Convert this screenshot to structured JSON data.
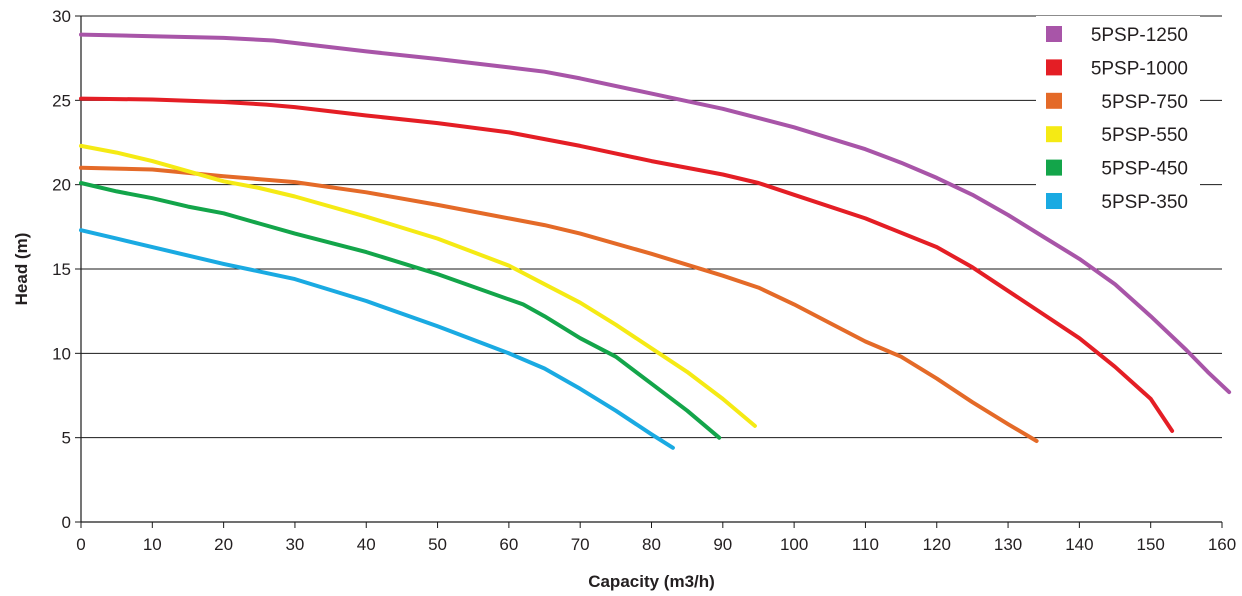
{
  "chart_data": {
    "type": "line",
    "title": "",
    "xlabel": "Capacity (m3/h)",
    "ylabel": "Head (m)",
    "xlim": [
      0,
      160
    ],
    "ylim": [
      0,
      30
    ],
    "x_ticks": [
      "0",
      "10",
      "20",
      "30",
      "40",
      "50",
      "60",
      "70",
      "80",
      "90",
      "100",
      "110",
      "120",
      "130",
      "140",
      "150",
      "160"
    ],
    "y_ticks": [
      "0",
      "5",
      "10",
      "15",
      "20",
      "25",
      "30"
    ],
    "grid": "horizontal",
    "legend_position": "top-right",
    "series": [
      {
        "name": "5PSP-1250",
        "color": "#a855a8",
        "points": [
          [
            0,
            28.9
          ],
          [
            10,
            28.8
          ],
          [
            20,
            28.7
          ],
          [
            27,
            28.55
          ],
          [
            30,
            28.4
          ],
          [
            40,
            27.9
          ],
          [
            50,
            27.45
          ],
          [
            60,
            26.95
          ],
          [
            65,
            26.7
          ],
          [
            70,
            26.3
          ],
          [
            80,
            25.4
          ],
          [
            90,
            24.5
          ],
          [
            100,
            23.4
          ],
          [
            110,
            22.1
          ],
          [
            115,
            21.3
          ],
          [
            120,
            20.4
          ],
          [
            125,
            19.4
          ],
          [
            130,
            18.2
          ],
          [
            135,
            16.9
          ],
          [
            140,
            15.6
          ],
          [
            145,
            14.1
          ],
          [
            150,
            12.2
          ],
          [
            155,
            10.2
          ],
          [
            158,
            8.9
          ],
          [
            161,
            7.7
          ]
        ]
      },
      {
        "name": "5PSP-1000",
        "color": "#e41e25",
        "points": [
          [
            0,
            25.1
          ],
          [
            10,
            25.05
          ],
          [
            20,
            24.9
          ],
          [
            26,
            24.75
          ],
          [
            30,
            24.6
          ],
          [
            40,
            24.1
          ],
          [
            50,
            23.65
          ],
          [
            60,
            23.1
          ],
          [
            70,
            22.3
          ],
          [
            80,
            21.4
          ],
          [
            90,
            20.6
          ],
          [
            95,
            20.1
          ],
          [
            100,
            19.4
          ],
          [
            110,
            18.0
          ],
          [
            120,
            16.3
          ],
          [
            125,
            15.1
          ],
          [
            130,
            13.7
          ],
          [
            135,
            12.3
          ],
          [
            140,
            10.9
          ],
          [
            145,
            9.2
          ],
          [
            150,
            7.3
          ],
          [
            153,
            5.4
          ]
        ]
      },
      {
        "name": "5PSP-750",
        "color": "#e46a28",
        "points": [
          [
            0,
            21.0
          ],
          [
            5,
            20.95
          ],
          [
            10,
            20.9
          ],
          [
            20,
            20.5
          ],
          [
            30,
            20.15
          ],
          [
            40,
            19.55
          ],
          [
            50,
            18.8
          ],
          [
            60,
            18.0
          ],
          [
            65,
            17.6
          ],
          [
            70,
            17.1
          ],
          [
            80,
            15.9
          ],
          [
            90,
            14.6
          ],
          [
            95,
            13.9
          ],
          [
            100,
            12.9
          ],
          [
            105,
            11.8
          ],
          [
            110,
            10.7
          ],
          [
            115,
            9.8
          ],
          [
            120,
            8.5
          ],
          [
            125,
            7.1
          ],
          [
            130,
            5.8
          ],
          [
            134,
            4.8
          ]
        ]
      },
      {
        "name": "5PSP-550",
        "color": "#f5ea14",
        "points": [
          [
            0,
            22.3
          ],
          [
            5,
            21.9
          ],
          [
            10,
            21.4
          ],
          [
            15,
            20.8
          ],
          [
            20,
            20.2
          ],
          [
            25,
            19.8
          ],
          [
            30,
            19.3
          ],
          [
            40,
            18.1
          ],
          [
            50,
            16.8
          ],
          [
            60,
            15.2
          ],
          [
            65,
            14.1
          ],
          [
            70,
            13.0
          ],
          [
            75,
            11.7
          ],
          [
            80,
            10.3
          ],
          [
            85,
            8.9
          ],
          [
            90,
            7.3
          ],
          [
            94.5,
            5.7
          ]
        ]
      },
      {
        "name": "5PSP-450",
        "color": "#13a54a",
        "points": [
          [
            0,
            20.1
          ],
          [
            5,
            19.6
          ],
          [
            10,
            19.2
          ],
          [
            13,
            18.9
          ],
          [
            15,
            18.7
          ],
          [
            20,
            18.3
          ],
          [
            25,
            17.7
          ],
          [
            30,
            17.1
          ],
          [
            40,
            16.0
          ],
          [
            50,
            14.7
          ],
          [
            60,
            13.2
          ],
          [
            62,
            12.9
          ],
          [
            65,
            12.2
          ],
          [
            70,
            10.9
          ],
          [
            75,
            9.8
          ],
          [
            80,
            8.2
          ],
          [
            85,
            6.6
          ],
          [
            89.5,
            5.0
          ]
        ]
      },
      {
        "name": "5PSP-350",
        "color": "#1aaae2",
        "points": [
          [
            0,
            17.3
          ],
          [
            5,
            16.8
          ],
          [
            10,
            16.3
          ],
          [
            20,
            15.3
          ],
          [
            30,
            14.4
          ],
          [
            40,
            13.1
          ],
          [
            50,
            11.6
          ],
          [
            55,
            10.8
          ],
          [
            60,
            10.0
          ],
          [
            65,
            9.1
          ],
          [
            70,
            7.9
          ],
          [
            75,
            6.6
          ],
          [
            80,
            5.2
          ],
          [
            83,
            4.4
          ]
        ]
      }
    ]
  }
}
